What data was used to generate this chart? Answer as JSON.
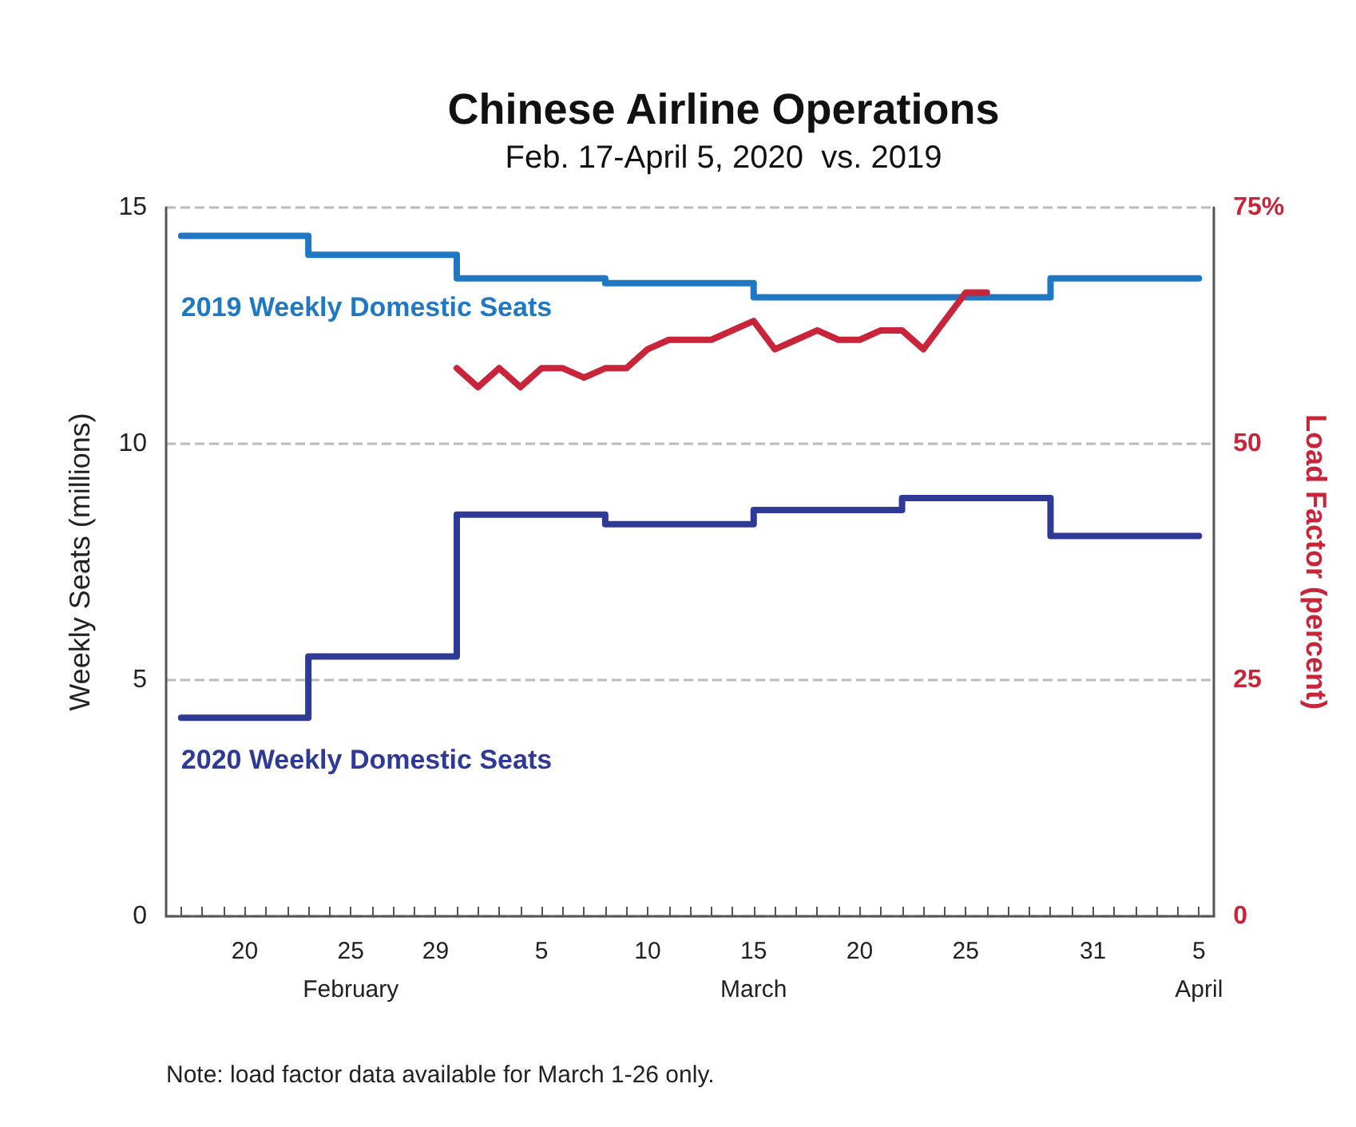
{
  "chart_data": {
    "type": "step",
    "title": "Chinese Airline Operations",
    "subtitle": "Feb. 17-April 5, 2020  vs. 2019",
    "ylabel": "Weekly Seats (millions)",
    "y2label": "Load Factor (percent)",
    "annotations": [
      "Note: load factor data available for March 1-26 only."
    ],
    "series": [
      {
        "name": "2019 Weekly Domestic Seats",
        "color": "#1f78c1",
        "x": [
          "2020-02-17",
          "2020-02-23",
          "2020-03-01",
          "2020-03-08",
          "2020-03-15",
          "2020-03-22",
          "2020-03-29",
          "2020-04-05"
        ],
        "values": [
          14.4,
          14.0,
          13.5,
          13.4,
          13.1,
          13.1,
          13.5,
          13.5
        ]
      },
      {
        "name": "2020 Weekly Domestic Seats",
        "color": "#2e3a96",
        "x": [
          "2020-02-17",
          "2020-02-23",
          "2020-03-01",
          "2020-03-08",
          "2020-03-15",
          "2020-03-22",
          "2020-03-29",
          "2020-04-05"
        ],
        "values": [
          4.2,
          5.5,
          8.5,
          8.3,
          8.6,
          8.85,
          8.05,
          8.05
        ]
      },
      {
        "type": "line",
        "axis": "y2",
        "color": "#c8243a",
        "x": [
          "2020-03-01",
          "2020-03-02",
          "2020-03-03",
          "2020-03-04",
          "2020-03-05",
          "2020-03-06",
          "2020-03-07",
          "2020-03-08",
          "2020-03-09",
          "2020-03-10",
          "2020-03-11",
          "2020-03-12",
          "2020-03-13",
          "2020-03-14",
          "2020-03-15",
          "2020-03-16",
          "2020-03-17",
          "2020-03-18",
          "2020-03-19",
          "2020-03-20",
          "2020-03-21",
          "2020-03-22",
          "2020-03-23",
          "2020-03-24",
          "2020-03-25",
          "2020-03-26"
        ],
        "values": [
          58,
          56,
          58,
          56,
          58,
          58,
          57,
          58,
          58,
          60,
          61,
          61,
          61,
          62,
          63,
          60,
          61,
          62,
          61,
          61,
          62,
          62,
          60,
          63,
          66,
          66
        ]
      }
    ],
    "xlim": [
      "2020-02-16T07:00",
      "2020-04-05T17:00"
    ],
    "xticks": [
      {
        "value": "2020-02-17",
        "label": null
      },
      {
        "value": "2020-02-18",
        "label": null
      },
      {
        "value": "2020-02-19",
        "label": null
      },
      {
        "value": "2020-02-20",
        "label": "20"
      },
      {
        "value": "2020-02-21",
        "label": null
      },
      {
        "value": "2020-02-22",
        "label": null
      },
      {
        "value": "2020-02-23",
        "label": null
      },
      {
        "value": "2020-02-24",
        "label": null
      },
      {
        "value": "2020-02-25",
        "label": "25\nFebruary"
      },
      {
        "value": "2020-02-26",
        "label": null
      },
      {
        "value": "2020-02-27",
        "label": null
      },
      {
        "value": "2020-02-28",
        "label": null
      },
      {
        "value": "2020-02-29",
        "label": "29"
      },
      {
        "value": "2020-03-01",
        "label": null
      },
      {
        "value": "2020-03-02",
        "label": null
      },
      {
        "value": "2020-03-03",
        "label": null
      },
      {
        "value": "2020-03-04",
        "label": null
      },
      {
        "value": "2020-03-05",
        "label": "5"
      },
      {
        "value": "2020-03-06",
        "label": null
      },
      {
        "value": "2020-03-07",
        "label": null
      },
      {
        "value": "2020-03-08",
        "label": null
      },
      {
        "value": "2020-03-09",
        "label": null
      },
      {
        "value": "2020-03-10",
        "label": "10"
      },
      {
        "value": "2020-03-11",
        "label": null
      },
      {
        "value": "2020-03-12",
        "label": null
      },
      {
        "value": "2020-03-13",
        "label": null
      },
      {
        "value": "2020-03-14",
        "label": null
      },
      {
        "value": "2020-03-15",
        "label": "15\nMarch"
      },
      {
        "value": "2020-03-16",
        "label": null
      },
      {
        "value": "2020-03-17",
        "label": null
      },
      {
        "value": "2020-03-18",
        "label": null
      },
      {
        "value": "2020-03-19",
        "label": null
      },
      {
        "value": "2020-03-20",
        "label": "20"
      },
      {
        "value": "2020-03-21",
        "label": null
      },
      {
        "value": "2020-03-22",
        "label": null
      },
      {
        "value": "2020-03-23",
        "label": null
      },
      {
        "value": "2020-03-24",
        "label": null
      },
      {
        "value": "2020-03-25",
        "label": "25"
      },
      {
        "value": "2020-03-26",
        "label": null
      },
      {
        "value": "2020-03-27",
        "label": null
      },
      {
        "value": "2020-03-28",
        "label": null
      },
      {
        "value": "2020-03-29",
        "label": null
      },
      {
        "value": "2020-03-30",
        "label": null
      },
      {
        "value": "2020-03-31",
        "label": "31"
      },
      {
        "value": "2020-04-01",
        "label": null
      },
      {
        "value": "2020-04-02",
        "label": null
      },
      {
        "value": "2020-04-03",
        "label": null
      },
      {
        "value": "2020-04-04",
        "label": null
      },
      {
        "value": "2020-04-05",
        "label": "5\nApril"
      }
    ],
    "ylim": [
      0,
      15
    ],
    "yticks": [
      0,
      5,
      10,
      15
    ],
    "y2lim": [
      0,
      75
    ],
    "y2ticks": [
      0,
      25,
      50,
      {
        "value": 75,
        "label": "75%"
      }
    ],
    "grid": "y",
    "legend": false,
    "marker": "none",
    "line_style": "solid"
  }
}
